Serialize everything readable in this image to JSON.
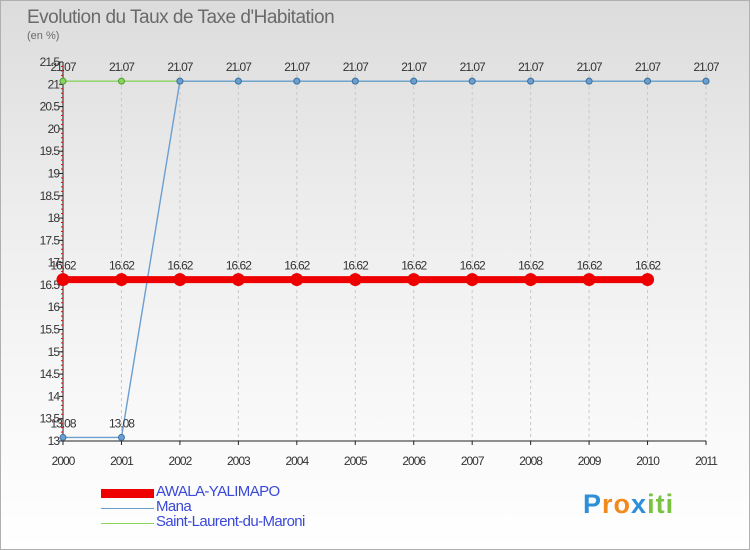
{
  "header": {
    "title": "Evolution du Taux de Taxe d'Habitation",
    "unit": "(en %)"
  },
  "chart_data": {
    "type": "line",
    "title": "Evolution du Taux de Taxe d'Habitation",
    "ylabel": "(en %)",
    "xlabel": "",
    "x": [
      2000,
      2001,
      2002,
      2003,
      2004,
      2005,
      2006,
      2007,
      2008,
      2009,
      2010,
      2011
    ],
    "ylim": [
      13,
      21.5
    ],
    "yticks": [
      13,
      13.5,
      14,
      14.5,
      15,
      15.5,
      16,
      16.5,
      17,
      17.5,
      18,
      18.5,
      19,
      19.5,
      20,
      20.5,
      21,
      21.5
    ],
    "grid": "vertical dashed",
    "series": [
      {
        "name": "AWALA-YALIMAPO",
        "color": "#ee0000",
        "values": [
          16.62,
          16.62,
          16.62,
          16.62,
          16.62,
          16.62,
          16.62,
          16.62,
          16.62,
          16.62,
          16.62,
          null
        ],
        "labels": [
          "16.62",
          "16.62",
          "16.62",
          "16.62",
          "16.62",
          "16.62",
          "16.62",
          "16.62",
          "16.62",
          "16.62",
          "16.62",
          null
        ]
      },
      {
        "name": "Mana",
        "color": "#6a9fd0",
        "values": [
          13.08,
          13.08,
          21.07,
          21.07,
          21.07,
          21.07,
          21.07,
          21.07,
          21.07,
          21.07,
          21.07,
          21.07
        ],
        "labels": [
          "13.08",
          "13.08",
          null,
          null,
          null,
          null,
          null,
          null,
          null,
          null,
          null,
          null
        ]
      },
      {
        "name": "Saint-Laurent-du-Maroni",
        "color": "#8ad460",
        "values": [
          21.07,
          21.07,
          21.07,
          21.07,
          21.07,
          21.07,
          21.07,
          21.07,
          21.07,
          21.07,
          21.07,
          21.07
        ],
        "labels": [
          "21.07",
          "21.07",
          "21.07",
          "21.07",
          "21.07",
          "21.07",
          "21.07",
          "21.07",
          "21.07",
          "21.07",
          "21.07",
          "21.07"
        ]
      }
    ]
  },
  "legend": {
    "items": [
      {
        "label": "AWALA-YALIMAPO",
        "color": "#ee0000"
      },
      {
        "label": "Mana",
        "color": "#6a9fd0"
      },
      {
        "label": "Saint-Laurent-du-Maroni",
        "color": "#8ad460"
      }
    ]
  },
  "logo": {
    "letters": [
      "P",
      "r",
      "o",
      "x",
      "i",
      "t",
      "i"
    ],
    "colors": [
      "#2d8fd8",
      "#f08a1c",
      "#f08a1c",
      "#2d8fd8",
      "#7bc142",
      "#7bc142",
      "#7bc142"
    ]
  }
}
